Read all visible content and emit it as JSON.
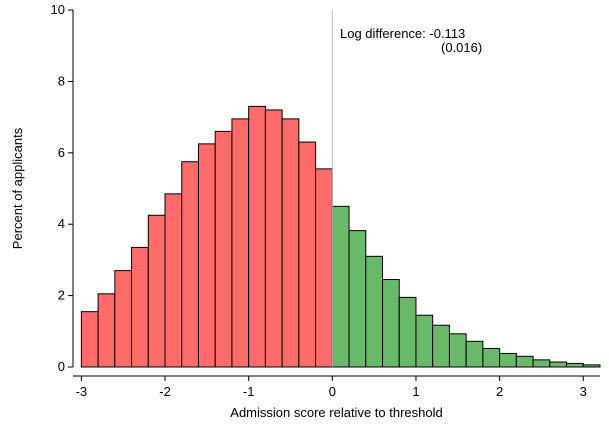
{
  "chart_data": {
    "type": "bar",
    "xlabel": "Admission score relative to threshold",
    "ylabel": "Percent of applicants",
    "xlim": [
      -3.1,
      3.2
    ],
    "ylim": [
      0,
      10
    ],
    "x_ticks": [
      -3,
      -2,
      -1,
      0,
      1,
      2,
      3
    ],
    "y_ticks": [
      0,
      2,
      4,
      6,
      8,
      10
    ],
    "bin_width": 0.2,
    "threshold": 0,
    "annotation": {
      "line1": "Log difference: -0.113",
      "line2": "(0.016)"
    },
    "colors": {
      "below": "#ff6b6b",
      "above": "#6ab86a",
      "outline": "#000000",
      "threshold_line": "#bbbbbb"
    },
    "series": [
      {
        "bin_left": [
          -3.0,
          -2.8,
          -2.6,
          -2.4,
          -2.2,
          -2.0,
          -1.8,
          -1.6,
          -1.4,
          -1.2,
          -1.0,
          -0.8,
          -0.6,
          -0.4,
          -0.2
        ],
        "values": [
          1.55,
          2.05,
          2.7,
          3.35,
          4.25,
          4.85,
          5.75,
          6.25,
          6.6,
          6.95,
          7.3,
          7.2,
          6.95,
          6.3,
          5.55
        ],
        "color": "#ff6b6b"
      },
      {
        "bin_left": [
          0.0,
          0.2,
          0.4,
          0.6,
          0.8,
          1.0,
          1.2,
          1.4,
          1.6,
          1.8,
          2.0,
          2.2,
          2.4,
          2.6,
          2.8,
          3.0
        ],
        "values": [
          4.5,
          3.82,
          3.1,
          2.45,
          1.95,
          1.45,
          1.17,
          0.93,
          0.72,
          0.52,
          0.38,
          0.3,
          0.2,
          0.14,
          0.1,
          0.06
        ],
        "color": "#6ab86a"
      }
    ]
  }
}
